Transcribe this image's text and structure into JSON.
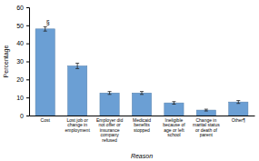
{
  "chart_data": {
    "type": "bar",
    "categories": [
      "Cost",
      "Lost job or\nchange in\nemployment",
      "Employer did\nnot offer or\ninsurance\ncompany\nrefused",
      "Medicaid\nbenefits\nstopped",
      "Ineligible\nbecause of\nage or left\nschool",
      "Change in\nmarital status\nor death of\nparent",
      "Other¶"
    ],
    "values": [
      48.0,
      27.5,
      12.5,
      12.5,
      7.0,
      3.0,
      7.5
    ],
    "errors": [
      1.2,
      1.5,
      0.8,
      0.8,
      0.7,
      0.5,
      0.8
    ],
    "color": "#6b9fd4",
    "xlabel": "Reason",
    "ylabel": "Percentage",
    "ylim": [
      0,
      60
    ],
    "yticks": [
      0,
      10,
      20,
      30,
      40,
      50,
      60
    ],
    "grid": false,
    "annotations": [
      {
        "text": "§",
        "category": "Cost"
      }
    ]
  }
}
